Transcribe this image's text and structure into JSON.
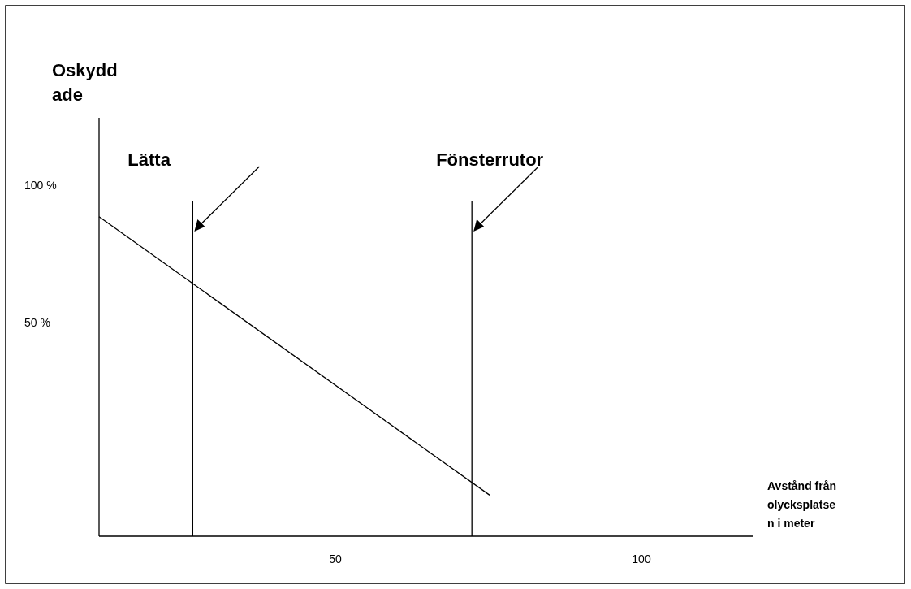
{
  "chart_data": {
    "type": "line",
    "xlabel": "Avstånd från olycksplatsen i meter",
    "ylabel": "Oskyddade",
    "x": [
      11.4,
      75.2
    ],
    "values": [
      88.5,
      -13
    ],
    "color": "#000000",
    "xlim": [
      11.4,
      118.3
    ],
    "xticks": [
      50,
      100
    ],
    "ylim": [
      -28,
      124.6
    ],
    "yticks": [
      {
        "value": 100,
        "label": "100 %"
      },
      {
        "value": 50,
        "label": "50 %"
      }
    ],
    "ref_lines": [
      {
        "axis": "x",
        "value": 26.7,
        "label": "Lätta",
        "color": "#000000"
      },
      {
        "axis": "x",
        "value": 72.3,
        "label": "Fönsterrutor",
        "color": "#000000"
      }
    ],
    "grid": false
  }
}
